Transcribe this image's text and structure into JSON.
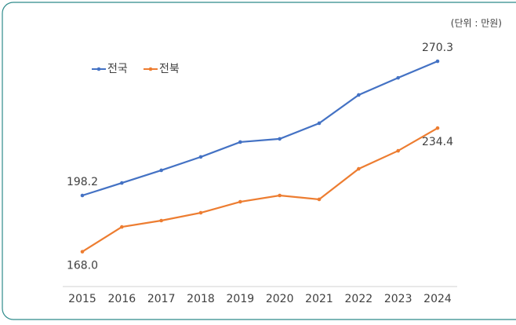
{
  "chart_data": {
    "type": "line",
    "unit_note": "(단위 : 만원)",
    "categories": [
      "2015",
      "2016",
      "2017",
      "2018",
      "2019",
      "2020",
      "2021",
      "2022",
      "2023",
      "2024"
    ],
    "series": [
      {
        "name": "전국",
        "color": "#4472c4",
        "values": [
          198.2,
          204.9,
          211.7,
          218.9,
          226.9,
          228.6,
          237.0,
          252.2,
          261.4,
          270.3
        ],
        "value_labels": [
          "198.2",
          null,
          null,
          null,
          null,
          null,
          null,
          null,
          null,
          "270.3"
        ]
      },
      {
        "name": "전북",
        "color": "#ed7d31",
        "values": [
          168.0,
          181.3,
          184.7,
          188.9,
          194.8,
          198.2,
          196.1,
          212.5,
          222.2,
          234.4
        ],
        "value_labels": [
          "168.0",
          null,
          null,
          null,
          null,
          null,
          null,
          null,
          null,
          "234.4"
        ]
      }
    ],
    "ylim": [
      150,
      290
    ],
    "legend": "top-left"
  }
}
